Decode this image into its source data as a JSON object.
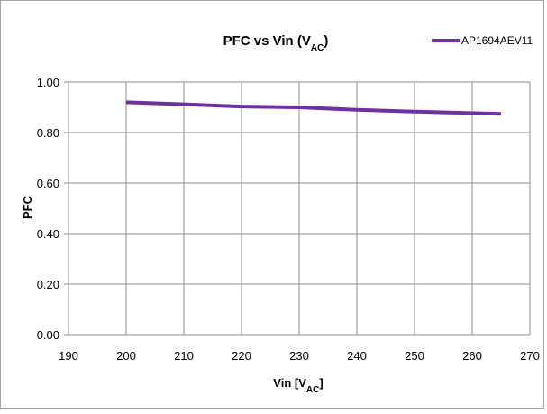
{
  "chart_data": {
    "type": "line",
    "title": "PFC vs Vin (V",
    "title_subscript": "AC",
    "title_suffix": ")",
    "xlabel": "Vin [V",
    "xlabel_subscript": "AC",
    "xlabel_suffix": "]",
    "ylabel": "PFC",
    "xlim": [
      190,
      270
    ],
    "ylim": [
      0,
      1
    ],
    "x_ticks": [
      "190",
      "200",
      "210",
      "220",
      "230",
      "240",
      "250",
      "260",
      "270"
    ],
    "y_ticks": [
      "0.00",
      "0.20",
      "0.40",
      "0.60",
      "0.80",
      "1.00"
    ],
    "grid": true,
    "legend_position": "top-right",
    "series": [
      {
        "name": "AP1694AEV11",
        "color": "#7030A0",
        "x": [
          200,
          210,
          220,
          230,
          240,
          250,
          265
        ],
        "y": [
          0.92,
          0.912,
          0.903,
          0.9,
          0.89,
          0.883,
          0.874
        ]
      }
    ]
  }
}
